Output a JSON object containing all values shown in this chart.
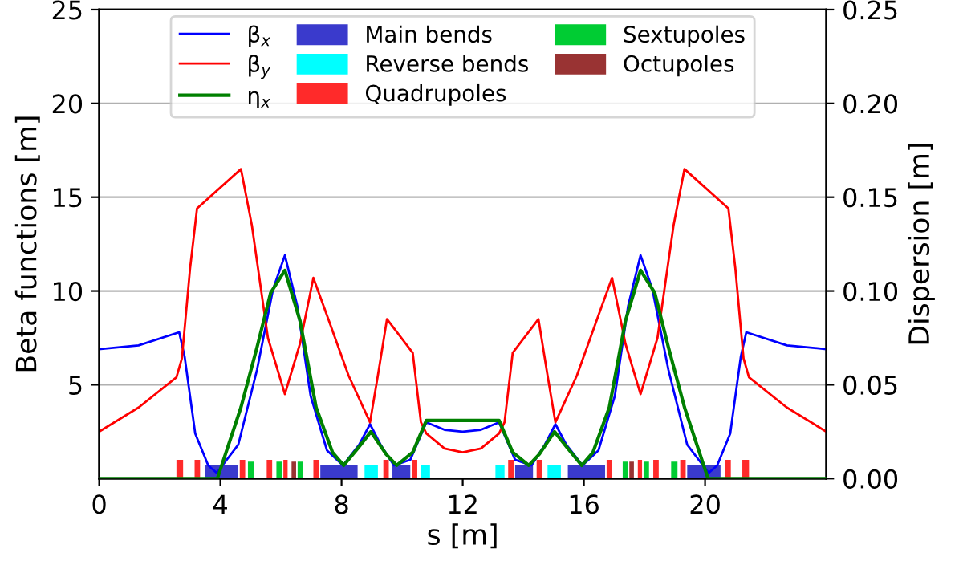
{
  "chart_data": {
    "type": "line",
    "xlabel": "s [m]",
    "ylabel": "Beta functions [m]",
    "y2label": "Dispersion [m]",
    "xlim": [
      0,
      24
    ],
    "xticks": [
      0,
      4,
      8,
      12,
      16,
      20
    ],
    "ylim": [
      0,
      25
    ],
    "yticks": [
      5,
      10,
      15,
      20,
      25
    ],
    "y2lim": [
      0,
      0.25
    ],
    "y2ticks": [
      {
        "value": 0,
        "label": "0.00"
      },
      {
        "value": 0.05,
        "label": "0.05"
      },
      {
        "value": 0.1,
        "label": "0.10"
      },
      {
        "value": 0.15,
        "label": "0.15"
      },
      {
        "value": 0.2,
        "label": "0.20"
      },
      {
        "value": 0.25,
        "label": "0.25"
      }
    ],
    "grid": "y",
    "legend": "top",
    "line_style": "solid",
    "marker": "none",
    "series": [
      {
        "name": "β$_{x}$",
        "color": "#0000ff",
        "x": [
          0,
          1.3,
          2.64,
          2.82,
          3.17,
          3.6,
          3.88,
          4.59,
          5.21,
          5.74,
          6.13,
          6.54,
          6.98,
          7.52,
          8.05,
          8.58,
          8.94,
          9.29,
          9.73,
          10.27,
          10.8,
          11.4,
          12,
          12.6,
          13.2,
          13.73,
          14.27,
          14.71,
          15.06,
          15.42,
          15.95,
          16.48,
          17.02,
          17.46,
          17.87,
          18.26,
          18.79,
          19.41,
          20.12,
          20.4,
          20.83,
          21.18,
          21.36,
          22.7,
          24
        ],
        "values": [
          6.9,
          7.1,
          7.8,
          6.5,
          2.4,
          0.7,
          0.3,
          1.8,
          5.8,
          10.1,
          11.9,
          9.2,
          4.4,
          1.5,
          0.7,
          1.8,
          2.9,
          1.8,
          0.7,
          1.0,
          3.0,
          2.6,
          2.5,
          2.6,
          3.0,
          1.0,
          0.7,
          1.8,
          2.9,
          1.8,
          0.7,
          1.5,
          4.4,
          9.2,
          11.9,
          10.1,
          5.8,
          1.8,
          0.3,
          0.7,
          2.4,
          6.5,
          7.8,
          7.1,
          6.9
        ]
      },
      {
        "name": "β$_{y}$",
        "color": "#ff0000",
        "x": [
          0,
          1.31,
          2.55,
          2.73,
          3.0,
          3.23,
          4.68,
          5.04,
          5.57,
          6.13,
          6.63,
          7.07,
          7.52,
          8.23,
          8.94,
          9.2,
          9.5,
          10.35,
          10.62,
          10.8,
          11.4,
          12,
          12.6,
          13.2,
          13.38,
          13.65,
          14.5,
          14.8,
          15.06,
          15.77,
          16.48,
          16.93,
          17.37,
          17.87,
          18.43,
          18.96,
          19.32,
          20.77,
          21.0,
          21.27,
          21.45,
          22.69,
          24
        ],
        "values": [
          2.5,
          3.8,
          5.4,
          6.4,
          11.2,
          14.4,
          16.5,
          13.5,
          7.5,
          4.5,
          7.2,
          10.7,
          8.7,
          5.5,
          3.0,
          5.5,
          8.5,
          6.7,
          3.0,
          2.4,
          1.6,
          1.4,
          1.6,
          2.4,
          3.0,
          6.7,
          8.5,
          5.5,
          3.0,
          5.5,
          8.7,
          10.7,
          7.2,
          4.5,
          7.5,
          13.5,
          16.5,
          14.4,
          11.2,
          6.4,
          5.4,
          3.8,
          2.5
        ]
      },
      {
        "name": "η$_{x}$",
        "color": "#008000",
        "axis": "y2",
        "x": [
          0,
          3.9,
          4.68,
          5.21,
          5.66,
          6.13,
          6.63,
          7.16,
          7.7,
          8.07,
          8.58,
          8.97,
          9.47,
          9.82,
          10.35,
          10.8,
          13.2,
          13.65,
          14.18,
          14.53,
          15.03,
          15.42,
          15.93,
          16.3,
          16.84,
          17.37,
          17.87,
          18.34,
          18.79,
          19.32,
          20.1,
          24
        ],
        "values": [
          0,
          0,
          0.038,
          0.07,
          0.099,
          0.111,
          0.084,
          0.038,
          0.014,
          0.007,
          0.017,
          0.025,
          0.013,
          0.007,
          0.014,
          0.031,
          0.031,
          0.014,
          0.007,
          0.013,
          0.025,
          0.017,
          0.007,
          0.014,
          0.038,
          0.084,
          0.111,
          0.099,
          0.07,
          0.038,
          0,
          0
        ]
      },
      {
        "name": "Main bends",
        "type": "histogram",
        "color": "#3a3acc",
        "bins": [
          3.49,
          4.59,
          7.3,
          8.53,
          9.68,
          10.27,
          13.73,
          14.32,
          15.47,
          16.7,
          19.41,
          20.51
        ],
        "values": [
          0.7,
          null,
          0.7,
          null,
          0.7,
          null,
          0.7,
          null,
          0.7,
          null,
          0.7
        ]
      },
      {
        "name": "Reverse bends",
        "type": "histogram",
        "color": "#00ffff",
        "bins": [
          8.76,
          9.2,
          10.62,
          10.92,
          13.08,
          13.38,
          14.8,
          15.24
        ],
        "values": [
          0.7,
          null,
          0.7,
          null,
          0.7,
          null,
          0.7
        ]
      },
      {
        "name": "Quadrupoles",
        "type": "histogram",
        "color": "#ff2a2a",
        "bins": [
          2.55,
          2.77,
          3.15,
          3.33,
          4.64,
          4.82,
          5.53,
          5.71,
          6.08,
          6.22,
          7.07,
          7.25,
          9.38,
          9.56,
          10.32,
          10.5,
          13.5,
          13.68,
          14.44,
          14.62,
          16.75,
          16.93,
          17.78,
          17.92,
          18.29,
          18.47,
          19.18,
          19.36,
          20.67,
          20.85,
          21.23,
          21.45
        ],
        "values": [
          1.0,
          null,
          1.0,
          null,
          1.0,
          null,
          1.0,
          null,
          1.0,
          null,
          1.0,
          null,
          1.0,
          null,
          1.0,
          null,
          1.0,
          null,
          1.0,
          null,
          1.0,
          null,
          1.0,
          null,
          1.0,
          null,
          1.0,
          null,
          1.0,
          null,
          1.0
        ]
      },
      {
        "name": "Sextupoles",
        "type": "histogram",
        "color": "#00cc33",
        "bins": [
          4.91,
          5.12,
          5.85,
          6.03,
          6.55,
          6.72,
          17.28,
          17.45,
          17.97,
          18.15,
          18.88,
          19.09
        ],
        "values": [
          0.9,
          null,
          0.9,
          null,
          0.9,
          null,
          0.9,
          null,
          0.9,
          null,
          0.9
        ]
      },
      {
        "name": "Octupoles",
        "type": "histogram",
        "color": "#993333",
        "bins": [
          6.35,
          6.5,
          17.5,
          17.65
        ],
        "values": [
          0.9,
          null,
          0.9
        ]
      }
    ]
  }
}
